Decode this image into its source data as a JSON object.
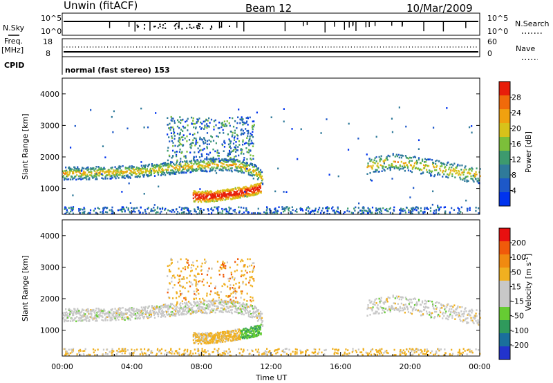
{
  "header": {
    "station": "Unwin (fitACF)",
    "beam": "Beam 12",
    "date": "10/Mar/2009"
  },
  "panels": {
    "nsky": {
      "label": "N.Sky",
      "right_label": "N.Search",
      "left_ticks": [
        "10^5",
        "10^0"
      ],
      "right_ticks": [
        "10^5",
        "10^0"
      ]
    },
    "freq": {
      "label_line1": "Freq.",
      "label_line2": "[MHz]",
      "right_label": "Nave",
      "left_ticks": [
        "18",
        "8"
      ],
      "right_ticks": [
        "60",
        "0"
      ]
    },
    "cpid": {
      "label": "CPID",
      "text": "normal (fast stereo) 153"
    }
  },
  "colors": {
    "power_scale": [
      "#0033ee",
      "#1d58c8",
      "#2f7a9a",
      "#3d9a6e",
      "#7cbf3a",
      "#d8c21a",
      "#f0a10f",
      "#f06a0a",
      "#e81e0a"
    ],
    "velocity_scale": [
      "#2233cc",
      "#1a6f9c",
      "#2f9a5c",
      "#66cc33",
      "#c8c8c8",
      "#c8c8c8",
      "#f0b020",
      "#f08a10",
      "#f05a0a",
      "#e81010"
    ]
  },
  "chart_data": [
    {
      "type": "heatmap",
      "name": "power",
      "ylabel": "Slant Range [km]",
      "ylim": [
        180,
        4500
      ],
      "yticks": [
        "4000",
        "3000",
        "2000",
        "1000"
      ],
      "xlim": [
        0,
        24
      ],
      "colorbar": {
        "label": "Power [dB]",
        "ticks": [
          "28",
          "24",
          "20",
          "16",
          "12",
          "8",
          "4"
        ],
        "range": [
          0,
          30
        ]
      },
      "features": [
        {
          "desc": "band",
          "x": [
            0,
            1,
            2,
            3,
            4,
            5,
            6,
            7,
            8,
            9,
            10,
            11,
            11.5
          ],
          "y": [
            1500,
            1510,
            1520,
            1540,
            1560,
            1600,
            1660,
            1720,
            1760,
            1780,
            1760,
            1600,
            1350
          ]
        },
        {
          "desc": "band",
          "x": [
            17.5,
            18,
            19,
            20,
            21,
            22,
            23,
            24
          ],
          "y": [
            1700,
            1800,
            1880,
            1800,
            1700,
            1620,
            1520,
            1450
          ]
        },
        {
          "desc": "blob",
          "x": [
            7.5,
            8,
            9,
            10,
            11,
            11.4
          ],
          "y": [
            780,
            760,
            800,
            880,
            980,
            1050
          ]
        }
      ]
    },
    {
      "type": "heatmap",
      "name": "velocity",
      "ylabel": "Slant Range [km]",
      "ylim": [
        180,
        4500
      ],
      "yticks": [
        "4000",
        "3000",
        "2000",
        "1000"
      ],
      "xlabel": "Time UT",
      "xticks": [
        "00:00",
        "04:00",
        "08:00",
        "12:00",
        "16:00",
        "20:00",
        "00:00"
      ],
      "xlim": [
        0,
        24
      ],
      "colorbar": {
        "label_main": "Velocity [m s",
        "label_sup": "-1",
        "label_end": "]",
        "ticks": [
          "200",
          "100",
          "50",
          "15",
          "-15",
          "-50",
          "-100",
          "-200"
        ]
      }
    }
  ]
}
